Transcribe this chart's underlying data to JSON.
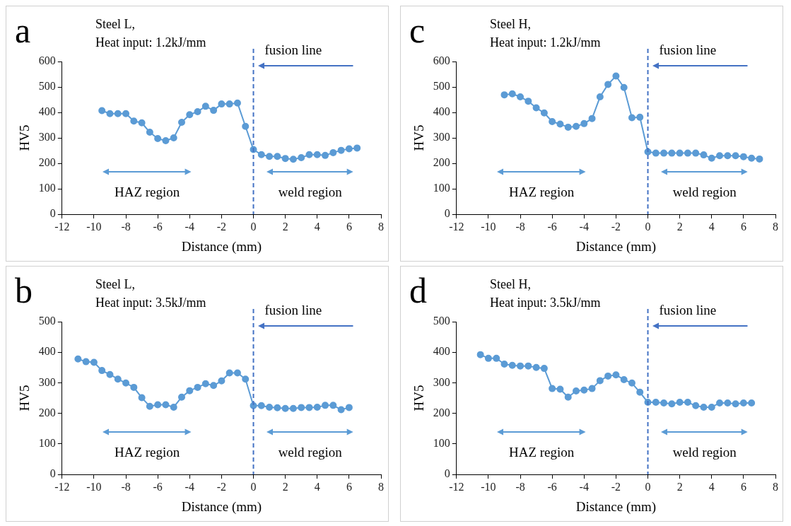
{
  "chart_data": [
    {
      "type": "line",
      "title": "a",
      "subtitle": "Steel L,\nHeat input: 1.2kJ/mm",
      "xlabel": "Distance (mm)",
      "ylabel": "HV5",
      "marker": "circle",
      "line_style": "solid",
      "series": [
        {
          "color": "#5b9bd5",
          "x": [
            -9.5,
            -9,
            -8.5,
            -8,
            -7.5,
            -7,
            -6.5,
            -6,
            -5.5,
            -5,
            -4.5,
            -4,
            -3.5,
            -3,
            -2.5,
            -2,
            -1.5,
            -1,
            -0.5,
            0,
            0.5,
            1,
            1.5,
            2,
            2.5,
            3,
            3.5,
            4,
            4.5,
            5,
            5.5,
            6,
            6.5
          ],
          "values": [
            407,
            395,
            395,
            395,
            366,
            359,
            322,
            297,
            289,
            300,
            361,
            391,
            403,
            424,
            408,
            433,
            433,
            437,
            345,
            254,
            234,
            227,
            227,
            219,
            216,
            222,
            234,
            234,
            231,
            242,
            251,
            257,
            260
          ]
        }
      ],
      "xlim": [
        -12,
        8
      ],
      "xticks": [
        -12,
        -10,
        -8,
        -6,
        -4,
        -2,
        0,
        2,
        4,
        6,
        8
      ],
      "ylim": [
        0,
        600
      ],
      "yticks": [
        0,
        100,
        200,
        300,
        400,
        500,
        600
      ],
      "ref_lines": [
        {
          "axis": "x",
          "value": 0,
          "label": "fusion line",
          "color": "#4472c4",
          "line_style": "dashed"
        }
      ],
      "annotations": [
        "HAZ region",
        "weld region"
      ]
    },
    {
      "type": "line",
      "title": "c",
      "subtitle": "Steel H,\nHeat input: 1.2kJ/mm",
      "xlabel": "Distance (mm)",
      "ylabel": "HV5",
      "marker": "circle",
      "line_style": "solid",
      "series": [
        {
          "color": "#5b9bd5",
          "x": [
            -9,
            -8.5,
            -8,
            -7.5,
            -7,
            -6.5,
            -6,
            -5.5,
            -5,
            -4.5,
            -4,
            -3.5,
            -3,
            -2.5,
            -2,
            -1.5,
            -1,
            -0.5,
            0,
            0.5,
            1,
            1.5,
            2,
            2.5,
            3,
            3.5,
            4,
            4.5,
            5,
            5.5,
            6,
            6.5,
            7
          ],
          "values": [
            469,
            473,
            461,
            444,
            418,
            398,
            364,
            354,
            342,
            345,
            356,
            376,
            461,
            510,
            543,
            498,
            379,
            381,
            245,
            240,
            240,
            240,
            240,
            240,
            240,
            233,
            220,
            230,
            230,
            230,
            226,
            220,
            217
          ]
        }
      ],
      "xlim": [
        -12,
        8
      ],
      "xticks": [
        -12,
        -10,
        -8,
        -6,
        -4,
        -2,
        0,
        2,
        4,
        6,
        8
      ],
      "ylim": [
        0,
        600
      ],
      "yticks": [
        0,
        100,
        200,
        300,
        400,
        500,
        600
      ],
      "ref_lines": [
        {
          "axis": "x",
          "value": 0,
          "label": "fusion line",
          "color": "#4472c4",
          "line_style": "dashed"
        }
      ],
      "annotations": [
        "HAZ region",
        "weld region"
      ]
    },
    {
      "type": "line",
      "title": "b",
      "subtitle": "Steel L,\nHeat input: 3.5kJ/mm",
      "xlabel": "Distance (mm)",
      "ylabel": "HV5",
      "marker": "circle",
      "line_style": "solid",
      "series": [
        {
          "color": "#5b9bd5",
          "x": [
            -11,
            -10.5,
            -10,
            -9.5,
            -9,
            -8.5,
            -8,
            -7.5,
            -7,
            -6.5,
            -6,
            -5.5,
            -5,
            -4.5,
            -4,
            -3.5,
            -3,
            -2.5,
            -2,
            -1.5,
            -1,
            -0.5,
            0,
            0.5,
            1,
            1.5,
            2,
            2.5,
            3,
            3.5,
            4,
            4.5,
            5,
            5.5,
            6
          ],
          "values": [
            378,
            369,
            367,
            340,
            327,
            312,
            299,
            285,
            251,
            223,
            228,
            228,
            220,
            253,
            274,
            285,
            297,
            291,
            306,
            332,
            332,
            312,
            225,
            225,
            220,
            218,
            216,
            216,
            219,
            219,
            220,
            226,
            226,
            212,
            219
          ]
        }
      ],
      "xlim": [
        -12,
        8
      ],
      "xticks": [
        -12,
        -10,
        -8,
        -6,
        -4,
        -2,
        0,
        2,
        4,
        6,
        8
      ],
      "ylim": [
        0,
        500
      ],
      "yticks": [
        0,
        100,
        200,
        300,
        400,
        500
      ],
      "ref_lines": [
        {
          "axis": "x",
          "value": 0,
          "label": "fusion line",
          "color": "#4472c4",
          "line_style": "dashed"
        }
      ],
      "annotations": [
        "HAZ region",
        "weld region"
      ]
    },
    {
      "type": "line",
      "title": "d",
      "subtitle": "Steel H,\nHeat input: 3.5kJ/mm",
      "xlabel": "Distance (mm)",
      "ylabel": "HV5",
      "marker": "circle",
      "line_style": "solid",
      "series": [
        {
          "color": "#5b9bd5",
          "x": [
            -10.5,
            -10,
            -9.5,
            -9,
            -8.5,
            -8,
            -7.5,
            -7,
            -6.5,
            -6,
            -5.5,
            -5,
            -4.5,
            -4,
            -3.5,
            -3,
            -2.5,
            -2,
            -1.5,
            -1,
            -0.5,
            0,
            0.5,
            1,
            1.5,
            2,
            2.5,
            3,
            3.5,
            4,
            4.5,
            5,
            5.5,
            6,
            6.5
          ],
          "values": [
            392,
            380,
            380,
            361,
            357,
            355,
            355,
            350,
            347,
            281,
            279,
            253,
            273,
            276,
            281,
            307,
            322,
            326,
            310,
            299,
            269,
            236,
            236,
            234,
            231,
            236,
            236,
            225,
            220,
            220,
            234,
            234,
            231,
            234,
            234
          ]
        }
      ],
      "xlim": [
        -12,
        8
      ],
      "xticks": [
        -12,
        -10,
        -8,
        -6,
        -4,
        -2,
        0,
        2,
        4,
        6,
        8
      ],
      "ylim": [
        0,
        500
      ],
      "yticks": [
        0,
        100,
        200,
        300,
        400,
        500
      ],
      "ref_lines": [
        {
          "axis": "x",
          "value": 0,
          "label": "fusion line",
          "color": "#4472c4",
          "line_style": "dashed"
        }
      ],
      "annotations": [
        "HAZ region",
        "weld region"
      ]
    }
  ]
}
